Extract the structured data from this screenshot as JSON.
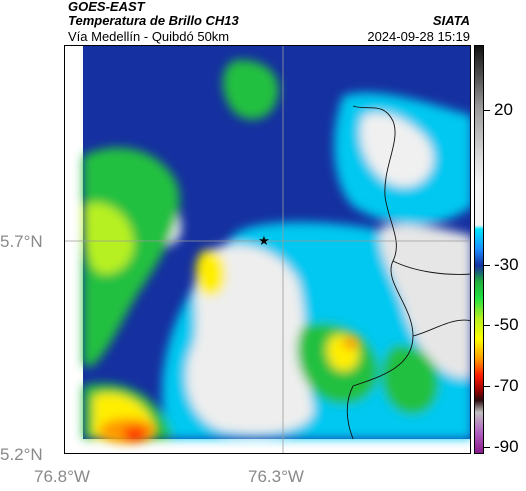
{
  "header": {
    "source": "GOES-EAST",
    "product": "Temperatura de Brillo CH13",
    "region": "Vía Medellín - Quibdó 50km",
    "brand": "SIATA",
    "datetime": "2024-09-28 15:19"
  },
  "map": {
    "lat_labels": [
      "5.7°N",
      "5.2°N"
    ],
    "lon_labels": [
      "76.8°W",
      "76.3°W"
    ],
    "marker": "star",
    "colors": {
      "deep_blue": "#1530a0",
      "blue": "#1a8cff",
      "cyan": "#00c8f0",
      "light": "#e8e8e8",
      "green": "#22c040",
      "lime": "#b7f020",
      "yellow": "#ffff00",
      "orange": "#ff9900",
      "red": "#ff2200"
    }
  },
  "colorbar": {
    "labels": [
      "20",
      "-30",
      "-50",
      "-70",
      "-90"
    ]
  }
}
